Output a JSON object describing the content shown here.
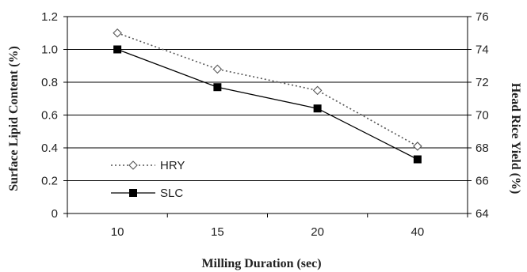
{
  "chart_data": {
    "type": "line",
    "categories": [
      "10",
      "15",
      "20",
      "40"
    ],
    "xlabel": "Milling Duration (sec)",
    "ylabel_left": "Surface Lipid Content (%)",
    "ylabel_right": "Head Rice Yield (%)",
    "ylim_left": [
      0,
      1.2
    ],
    "ylim_right": [
      64,
      76
    ],
    "yticks_left": [
      "0",
      "0.2",
      "0.4",
      "0.6",
      "0.8",
      "1.0",
      "1.2"
    ],
    "yticks_right": [
      "64",
      "66",
      "68",
      "70",
      "72",
      "74",
      "76"
    ],
    "grid": true,
    "legend_position": "left",
    "series": [
      {
        "name": "HRY",
        "axis": "right",
        "values": [
          75.0,
          72.8,
          71.5,
          68.1
        ],
        "line_style": "dotted",
        "marker": "diamond-open"
      },
      {
        "name": "SLC",
        "axis": "left",
        "values": [
          1.0,
          0.77,
          0.64,
          0.33
        ],
        "line_style": "solid",
        "marker": "square-filled"
      }
    ]
  }
}
